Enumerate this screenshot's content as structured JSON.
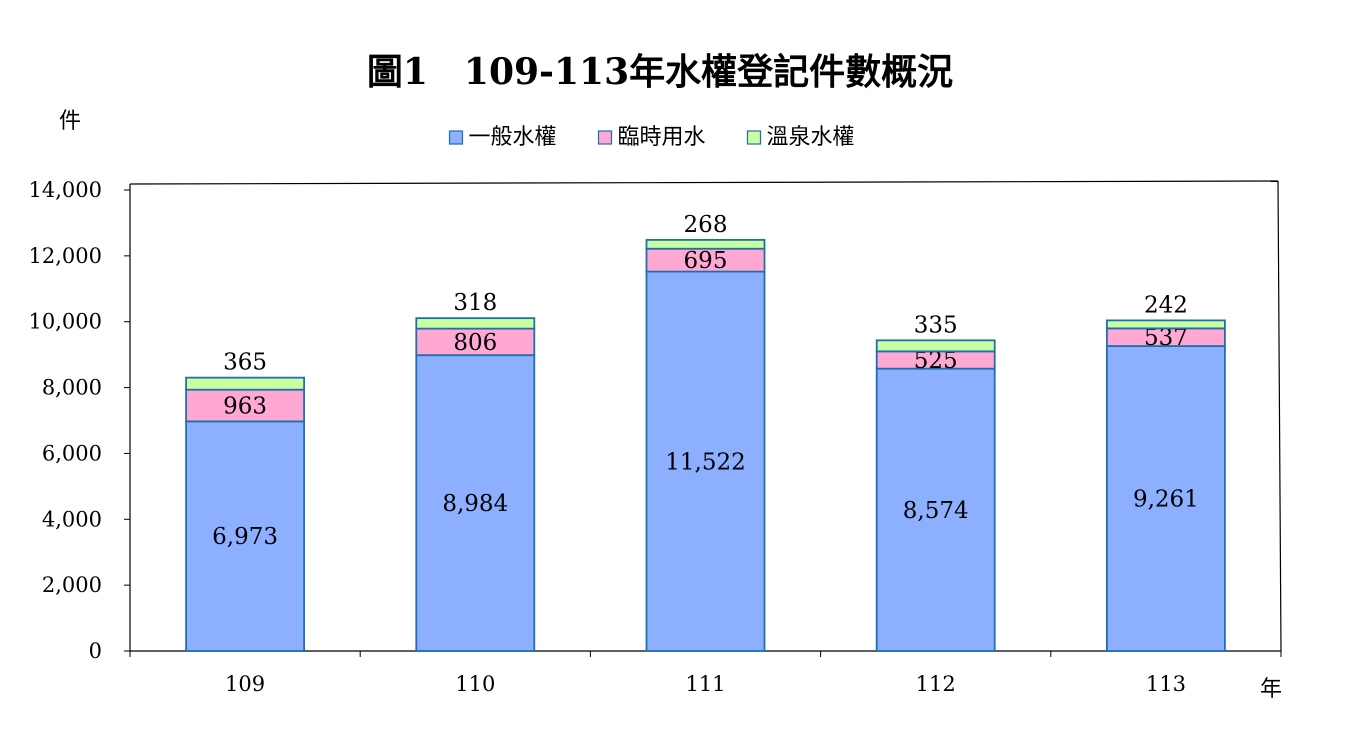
{
  "chart_data": {
    "type": "bar",
    "stacked": true,
    "title": "圖1　109-113年水權登記件數概況",
    "ylabel": "件",
    "xlabel": "年",
    "categories": [
      "109",
      "110",
      "111",
      "112",
      "113"
    ],
    "series": [
      {
        "name": "一般水權",
        "values": [
          6973,
          8984,
          11522,
          8574,
          9261
        ],
        "labels": [
          "6,973",
          "8,984",
          "11,522",
          "8,574",
          "9,261"
        ],
        "color": "#8CB0FF"
      },
      {
        "name": "臨時用水",
        "values": [
          963,
          806,
          695,
          525,
          537
        ],
        "labels": [
          "963",
          "806",
          "695",
          "525",
          "537"
        ],
        "color": "#FFA8D4"
      },
      {
        "name": "溫泉水權",
        "values": [
          365,
          318,
          268,
          335,
          242
        ],
        "labels": [
          "365",
          "318",
          "268",
          "335",
          "242"
        ],
        "color": "#C8FFA0"
      }
    ],
    "ylim": [
      0,
      14000
    ],
    "yticks": [
      0,
      2000,
      4000,
      6000,
      8000,
      10000,
      12000,
      14000
    ],
    "ytick_labels": [
      "0",
      "2,000",
      "4,000",
      "6,000",
      "8,000",
      "10,000",
      "12,000",
      "14,000"
    ],
    "grid": false,
    "legend": "top-center",
    "bar_outline_color": "#1F6FB0"
  }
}
